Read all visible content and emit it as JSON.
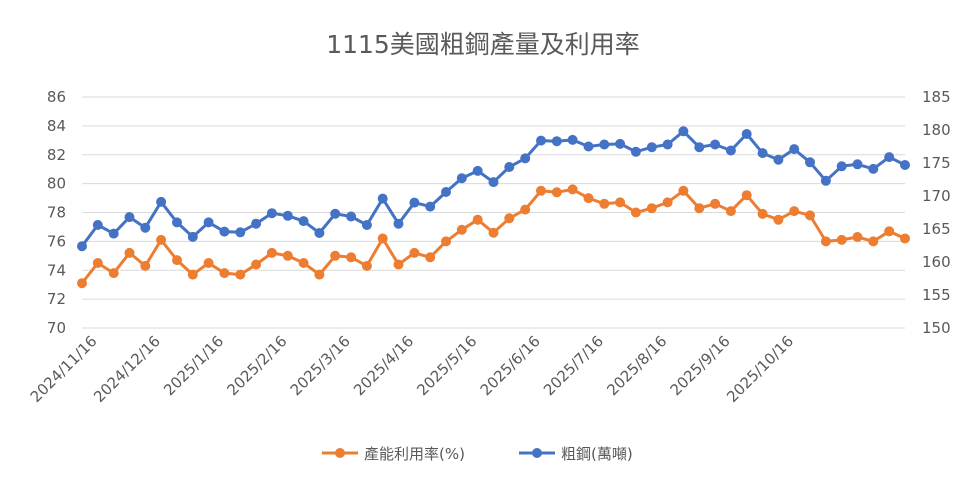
{
  "chart_data": {
    "type": "line",
    "title": "1115美國粗鋼產量及利用率",
    "x_tick_labels": [
      "2024/11/16",
      "2024/12/16",
      "2025/1/16",
      "2025/2/16",
      "2025/3/16",
      "2025/4/16",
      "2025/5/16",
      "2025/6/16",
      "2025/7/16",
      "2025/8/16",
      "2025/9/16",
      "2025/10/16"
    ],
    "y_left": {
      "ylim": [
        70,
        86
      ],
      "ticks": [
        "70",
        "72",
        "74",
        "76",
        "78",
        "80",
        "82",
        "84",
        "86"
      ]
    },
    "y_right": {
      "ylim": [
        150,
        185
      ],
      "ticks": [
        "150",
        "155",
        "160",
        "165",
        "170",
        "175",
        "180",
        "185"
      ]
    },
    "grid": true,
    "legend_position": "bottom",
    "series": [
      {
        "name": "產能利用率(%)",
        "axis": "left",
        "color": "#ed7d31",
        "values": [
          73.1,
          74.5,
          73.8,
          75.2,
          74.3,
          76.1,
          74.7,
          73.7,
          74.5,
          73.8,
          73.7,
          74.4,
          75.2,
          75.0,
          74.5,
          73.7,
          75.0,
          74.9,
          74.3,
          76.2,
          74.4,
          75.2,
          74.9,
          76.0,
          76.8,
          77.5,
          76.6,
          77.6,
          78.2,
          79.5,
          79.4,
          79.6,
          79.0,
          78.6,
          78.7,
          78.0,
          78.3,
          78.7,
          79.5,
          78.3,
          78.6,
          78.1,
          79.2,
          77.9,
          77.5,
          78.1,
          77.8,
          76.0,
          76.1,
          76.3,
          76.0,
          76.7,
          76.2
        ]
      },
      {
        "name": "粗鋼(萬噸)",
        "axis": "right",
        "color": "#4472c4",
        "values": [
          162.4,
          165.6,
          164.3,
          166.8,
          165.2,
          169.1,
          166.0,
          163.8,
          166.0,
          164.6,
          164.5,
          165.8,
          167.4,
          167.0,
          166.2,
          164.4,
          167.3,
          166.9,
          165.6,
          169.6,
          165.8,
          169.0,
          168.4,
          170.6,
          172.7,
          173.8,
          172.1,
          174.4,
          175.7,
          178.4,
          178.3,
          178.5,
          177.5,
          177.8,
          177.9,
          176.7,
          177.4,
          177.8,
          179.8,
          177.4,
          177.8,
          176.9,
          179.4,
          176.5,
          175.5,
          177.1,
          175.1,
          172.3,
          174.5,
          174.8,
          174.1,
          175.9,
          174.7
        ]
      }
    ]
  }
}
